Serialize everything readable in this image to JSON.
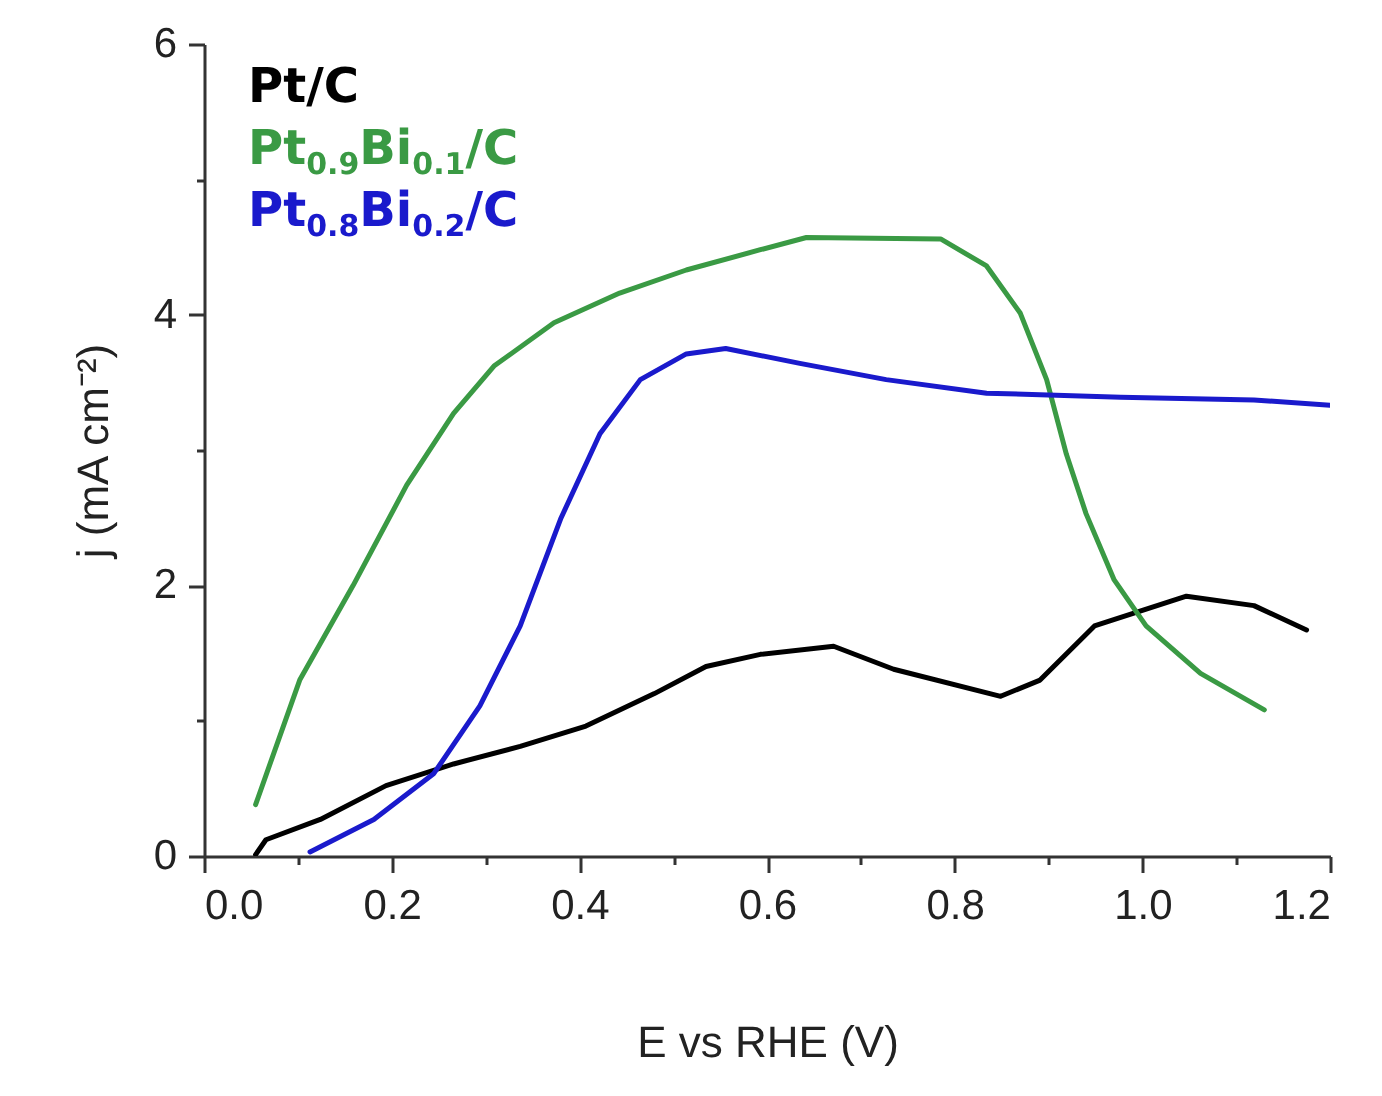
{
  "chart_data": {
    "type": "line",
    "xlabel": "E vs RHE (V)",
    "ylabel": "j (mA cm⁻²)",
    "xlim": [
      0,
      1.2
    ],
    "ylim": [
      0,
      6
    ],
    "xticks": [
      {
        "value": 0,
        "label": "0.0"
      },
      {
        "value": 0.1,
        "label": null
      },
      {
        "value": 0.2,
        "label": "0.2"
      },
      {
        "value": 0.3,
        "label": null
      },
      {
        "value": 0.4,
        "label": "0.4"
      },
      {
        "value": 0.5,
        "label": null
      },
      {
        "value": 0.6,
        "label": "0.6"
      },
      {
        "value": 0.7,
        "label": null
      },
      {
        "value": 0.8,
        "label": "0.8"
      },
      {
        "value": 0.9,
        "label": null
      },
      {
        "value": 1.0,
        "label": "1.0"
      },
      {
        "value": 1.1,
        "label": null
      },
      {
        "value": 1.2,
        "label": "1.2"
      }
    ],
    "yticks": [
      0,
      {
        "value": 1,
        "label": null
      },
      2,
      {
        "value": 3,
        "label": null
      },
      4,
      {
        "value": 5,
        "label": null
      },
      6
    ],
    "grid": false,
    "legend": "top left",
    "marker": "none",
    "line_style": "solid",
    "series": [
      {
        "name": "Pt/C",
        "color": "#000000",
        "x": [
          0.055,
          0.066,
          0.124,
          0.194,
          0.266,
          0.337,
          0.407,
          0.48,
          0.535,
          0.593,
          0.671,
          0.735,
          0.849,
          0.891,
          0.949,
          1.047,
          1.119,
          1.175
        ],
        "values": [
          0.01,
          0.12,
          0.27,
          0.52,
          0.68,
          0.81,
          0.96,
          1.2,
          1.4,
          1.49,
          1.55,
          1.38,
          1.18,
          1.3,
          1.7,
          1.92,
          1.85,
          1.67
        ]
      },
      {
        "name": "Pt$_{0.9}$Bi$_{0.1}$/C",
        "color": "#3a9a44",
        "x": [
          0.055,
          0.102,
          0.159,
          0.216,
          0.266,
          0.309,
          0.373,
          0.443,
          0.514,
          0.593,
          0.642,
          0.785,
          0.834,
          0.87,
          0.898,
          0.919,
          0.94,
          0.97,
          1.004,
          1.062,
          1.13
        ],
        "values": [
          0.38,
          1.3,
          2.0,
          2.74,
          3.27,
          3.62,
          3.94,
          4.16,
          4.33,
          4.48,
          4.57,
          4.56,
          4.36,
          4.01,
          3.52,
          2.97,
          2.53,
          2.04,
          1.7,
          1.35,
          1.08
        ]
      },
      {
        "name": "Pt$_{0.8}$Bi$_{0.2}$/C",
        "color": "#1a1acc",
        "x": [
          0.113,
          0.181,
          0.245,
          0.294,
          0.337,
          0.38,
          0.422,
          0.465,
          0.514,
          0.556,
          0.635,
          0.727,
          0.834,
          0.977,
          1.119,
          1.2
        ],
        "values": [
          0.03,
          0.27,
          0.61,
          1.11,
          1.7,
          2.49,
          3.12,
          3.52,
          3.71,
          3.75,
          3.64,
          3.52,
          3.42,
          3.39,
          3.37,
          3.33
        ]
      }
    ]
  }
}
